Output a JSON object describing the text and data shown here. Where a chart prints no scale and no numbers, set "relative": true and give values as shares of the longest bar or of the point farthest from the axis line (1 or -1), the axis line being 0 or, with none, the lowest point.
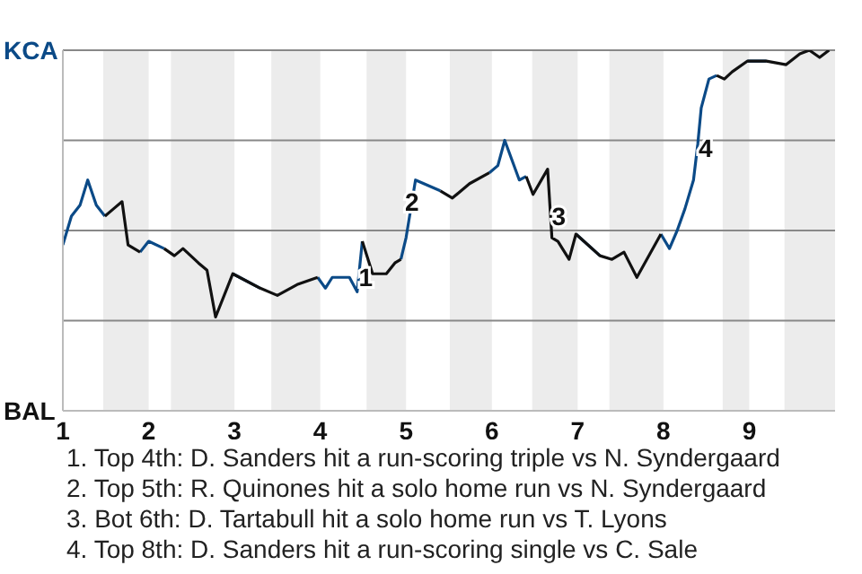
{
  "chart_data": {
    "type": "line",
    "relative": true,
    "x": [
      1.0,
      1.1,
      1.2,
      1.29,
      1.39,
      1.49,
      1.59,
      1.69,
      1.76,
      1.9,
      2.0,
      2.18,
      2.3,
      2.4,
      2.58,
      2.68,
      2.78,
      2.98,
      3.3,
      3.5,
      3.73,
      3.97,
      4.06,
      4.14,
      4.34,
      4.43,
      4.49,
      4.61,
      4.77,
      4.87,
      4.94,
      5.0,
      5.11,
      5.4,
      5.54,
      5.74,
      5.97,
      6.07,
      6.15,
      6.32,
      6.4,
      6.48,
      6.65,
      6.7,
      6.77,
      6.9,
      6.98,
      7.26,
      7.4,
      7.54,
      7.69,
      7.97,
      8.07,
      8.16,
      8.25,
      8.35,
      8.4,
      8.44,
      8.53,
      8.62,
      8.71,
      8.8,
      8.98,
      9.2,
      9.43,
      9.59,
      9.7,
      9.82,
      9.93
    ],
    "xlim": [
      1,
      10
    ],
    "xticks": [
      1,
      2,
      3,
      4,
      5,
      6,
      7,
      8,
      9
    ],
    "series": [
      {
        "color": "#0b4a87",
        "values": [
          0.46,
          0.54,
          0.57,
          0.64,
          0.57,
          0.54,
          null,
          null,
          null,
          0.44,
          0.47,
          0.45,
          null,
          null,
          null,
          null,
          null,
          0.38,
          0.34,
          null,
          null,
          0.37,
          0.34,
          0.37,
          0.37,
          0.33,
          0.47,
          null,
          null,
          null,
          0.42,
          0.48,
          0.64,
          0.61,
          null,
          null,
          0.66,
          0.68,
          0.75,
          0.64,
          0.65,
          null,
          null,
          null,
          null,
          null,
          0.49,
          0.43,
          null,
          null,
          null,
          0.49,
          0.45,
          0.5,
          0.56,
          0.64,
          0.74,
          0.84,
          0.92,
          0.93,
          null,
          null,
          0.97,
          0.97,
          null,
          null,
          null,
          null,
          null
        ]
      },
      {
        "color": "#111111",
        "values": [
          null,
          null,
          null,
          null,
          null,
          0.54,
          0.56,
          0.58,
          0.46,
          0.44,
          null,
          0.45,
          0.43,
          0.45,
          0.41,
          0.39,
          0.26,
          0.38,
          0.34,
          0.32,
          0.35,
          0.37,
          null,
          null,
          null,
          null,
          0.47,
          0.38,
          0.38,
          0.41,
          0.42,
          null,
          null,
          0.61,
          0.59,
          0.63,
          0.66,
          null,
          null,
          null,
          0.65,
          0.6,
          0.67,
          0.48,
          0.47,
          0.42,
          0.49,
          0.43,
          0.42,
          0.44,
          0.37,
          0.49,
          null,
          null,
          null,
          null,
          null,
          null,
          null,
          0.93,
          0.92,
          0.94,
          0.97,
          0.97,
          0.96,
          0.99,
          1.0,
          0.98,
          1.0
        ]
      }
    ],
    "marker": "none",
    "legend": false,
    "ref_lines": [
      {
        "axis": "y",
        "value": 0.25,
        "color": "#888888"
      },
      {
        "axis": "y",
        "value": 0.5,
        "color": "#888888"
      },
      {
        "axis": "y",
        "value": 0.75,
        "color": "#888888"
      },
      {
        "axis": "y",
        "value": 1,
        "color": "#888888"
      }
    ],
    "bands": [
      {
        "axis": "x",
        "from": 1.47,
        "to": 2,
        "color": "#ececec"
      },
      {
        "axis": "x",
        "from": 2.26,
        "to": 3,
        "color": "#ececec"
      },
      {
        "axis": "x",
        "from": 3.43,
        "to": 4,
        "color": "#ececec"
      },
      {
        "axis": "x",
        "from": 4.54,
        "to": 5,
        "color": "#ececec"
      },
      {
        "axis": "x",
        "from": 5.51,
        "to": 6,
        "color": "#ececec"
      },
      {
        "axis": "x",
        "from": 6.47,
        "to": 7,
        "color": "#ececec"
      },
      {
        "axis": "x",
        "from": 7.37,
        "to": 8,
        "color": "#ececec"
      },
      {
        "axis": "x",
        "from": 8.69,
        "to": 9,
        "color": "#ececec"
      },
      {
        "axis": "x",
        "from": 9.41,
        "to": 10,
        "color": "#ececec"
      }
    ],
    "annotations": [
      "KCA",
      "BAL",
      {
        "text": "1",
        "x": 4.53,
        "y": 0.37
      },
      {
        "text": "2",
        "x": 5.07,
        "y": 0.58
      },
      {
        "text": "3",
        "x": 6.78,
        "y": 0.54
      },
      {
        "text": "4",
        "x": 8.49,
        "y": 0.73
      },
      "1. Top 4th: D. Sanders hit a run-scoring triple vs N. Syndergaard",
      "2. Top 5th: R. Quinones hit a solo home run vs N. Syndergaard",
      "3. Bot 6th: D. Tartabull hit a solo home run vs T. Lyons",
      "4. Top 8th: D. Sanders hit a run-scoring single vs C. Sale"
    ]
  }
}
